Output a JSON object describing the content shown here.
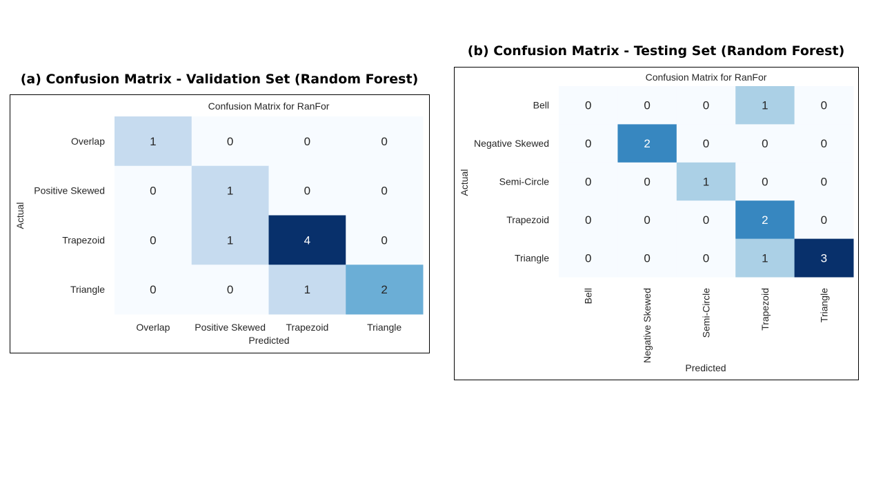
{
  "panel_a": {
    "title": "(a) Confusion Matrix - Validation Set (Random Forest)"
  },
  "panel_b": {
    "title": "(b) Confusion Matrix - Testing Set (Random Forest)"
  },
  "chart_data": [
    {
      "type": "heatmap",
      "id": "validation",
      "title": "Confusion Matrix for RanFor",
      "xlabel": "Predicted",
      "ylabel": "Actual",
      "x_categories": [
        "Overlap",
        "Positive Skewed",
        "Trapezoid",
        "Triangle"
      ],
      "y_categories": [
        "Overlap",
        "Positive Skewed",
        "Trapezoid",
        "Triangle"
      ],
      "values": [
        [
          1,
          0,
          0,
          0
        ],
        [
          0,
          1,
          0,
          0
        ],
        [
          0,
          1,
          4,
          0
        ],
        [
          0,
          0,
          1,
          2
        ]
      ],
      "colormap": "Blues",
      "vmin": 0,
      "vmax": 4
    },
    {
      "type": "heatmap",
      "id": "testing",
      "title": "Confusion Matrix for RanFor",
      "xlabel": "Predicted",
      "ylabel": "Actual",
      "x_categories": [
        "Bell",
        "Negative Skewed",
        "Semi-Circle",
        "Trapezoid",
        "Triangle"
      ],
      "y_categories": [
        "Bell",
        "Negative Skewed",
        "Semi-Circle",
        "Trapezoid",
        "Triangle"
      ],
      "values": [
        [
          0,
          0,
          0,
          1,
          0
        ],
        [
          0,
          2,
          0,
          0,
          0
        ],
        [
          0,
          0,
          1,
          0,
          0
        ],
        [
          0,
          0,
          0,
          2,
          0
        ],
        [
          0,
          0,
          0,
          1,
          3
        ]
      ],
      "colormap": "Blues",
      "vmin": 0,
      "vmax": 3
    }
  ]
}
